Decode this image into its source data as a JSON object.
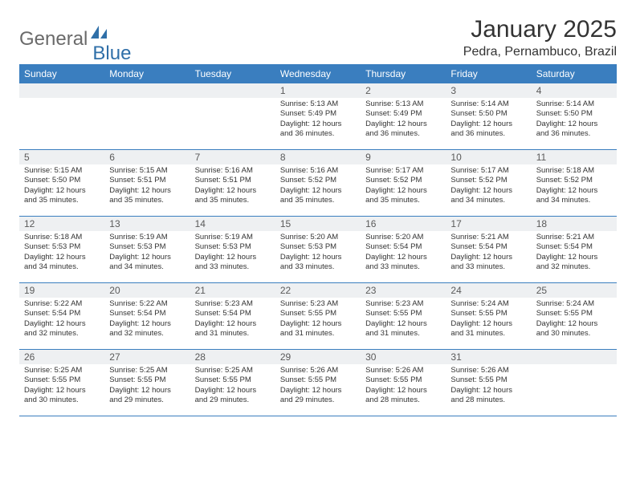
{
  "logo": {
    "part1": "General",
    "part2": "Blue"
  },
  "title": "January 2025",
  "location": "Pedra, Pernambuco, Brazil",
  "header_bg": "#3a7ebf",
  "columns": [
    "Sunday",
    "Monday",
    "Tuesday",
    "Wednesday",
    "Thursday",
    "Friday",
    "Saturday"
  ],
  "weeks": [
    [
      {
        "n": "",
        "lines": []
      },
      {
        "n": "",
        "lines": []
      },
      {
        "n": "",
        "lines": []
      },
      {
        "n": "1",
        "lines": [
          "Sunrise: 5:13 AM",
          "Sunset: 5:49 PM",
          "Daylight: 12 hours",
          "and 36 minutes."
        ]
      },
      {
        "n": "2",
        "lines": [
          "Sunrise: 5:13 AM",
          "Sunset: 5:49 PM",
          "Daylight: 12 hours",
          "and 36 minutes."
        ]
      },
      {
        "n": "3",
        "lines": [
          "Sunrise: 5:14 AM",
          "Sunset: 5:50 PM",
          "Daylight: 12 hours",
          "and 36 minutes."
        ]
      },
      {
        "n": "4",
        "lines": [
          "Sunrise: 5:14 AM",
          "Sunset: 5:50 PM",
          "Daylight: 12 hours",
          "and 36 minutes."
        ]
      }
    ],
    [
      {
        "n": "5",
        "lines": [
          "Sunrise: 5:15 AM",
          "Sunset: 5:50 PM",
          "Daylight: 12 hours",
          "and 35 minutes."
        ]
      },
      {
        "n": "6",
        "lines": [
          "Sunrise: 5:15 AM",
          "Sunset: 5:51 PM",
          "Daylight: 12 hours",
          "and 35 minutes."
        ]
      },
      {
        "n": "7",
        "lines": [
          "Sunrise: 5:16 AM",
          "Sunset: 5:51 PM",
          "Daylight: 12 hours",
          "and 35 minutes."
        ]
      },
      {
        "n": "8",
        "lines": [
          "Sunrise: 5:16 AM",
          "Sunset: 5:52 PM",
          "Daylight: 12 hours",
          "and 35 minutes."
        ]
      },
      {
        "n": "9",
        "lines": [
          "Sunrise: 5:17 AM",
          "Sunset: 5:52 PM",
          "Daylight: 12 hours",
          "and 35 minutes."
        ]
      },
      {
        "n": "10",
        "lines": [
          "Sunrise: 5:17 AM",
          "Sunset: 5:52 PM",
          "Daylight: 12 hours",
          "and 34 minutes."
        ]
      },
      {
        "n": "11",
        "lines": [
          "Sunrise: 5:18 AM",
          "Sunset: 5:52 PM",
          "Daylight: 12 hours",
          "and 34 minutes."
        ]
      }
    ],
    [
      {
        "n": "12",
        "lines": [
          "Sunrise: 5:18 AM",
          "Sunset: 5:53 PM",
          "Daylight: 12 hours",
          "and 34 minutes."
        ]
      },
      {
        "n": "13",
        "lines": [
          "Sunrise: 5:19 AM",
          "Sunset: 5:53 PM",
          "Daylight: 12 hours",
          "and 34 minutes."
        ]
      },
      {
        "n": "14",
        "lines": [
          "Sunrise: 5:19 AM",
          "Sunset: 5:53 PM",
          "Daylight: 12 hours",
          "and 33 minutes."
        ]
      },
      {
        "n": "15",
        "lines": [
          "Sunrise: 5:20 AM",
          "Sunset: 5:53 PM",
          "Daylight: 12 hours",
          "and 33 minutes."
        ]
      },
      {
        "n": "16",
        "lines": [
          "Sunrise: 5:20 AM",
          "Sunset: 5:54 PM",
          "Daylight: 12 hours",
          "and 33 minutes."
        ]
      },
      {
        "n": "17",
        "lines": [
          "Sunrise: 5:21 AM",
          "Sunset: 5:54 PM",
          "Daylight: 12 hours",
          "and 33 minutes."
        ]
      },
      {
        "n": "18",
        "lines": [
          "Sunrise: 5:21 AM",
          "Sunset: 5:54 PM",
          "Daylight: 12 hours",
          "and 32 minutes."
        ]
      }
    ],
    [
      {
        "n": "19",
        "lines": [
          "Sunrise: 5:22 AM",
          "Sunset: 5:54 PM",
          "Daylight: 12 hours",
          "and 32 minutes."
        ]
      },
      {
        "n": "20",
        "lines": [
          "Sunrise: 5:22 AM",
          "Sunset: 5:54 PM",
          "Daylight: 12 hours",
          "and 32 minutes."
        ]
      },
      {
        "n": "21",
        "lines": [
          "Sunrise: 5:23 AM",
          "Sunset: 5:54 PM",
          "Daylight: 12 hours",
          "and 31 minutes."
        ]
      },
      {
        "n": "22",
        "lines": [
          "Sunrise: 5:23 AM",
          "Sunset: 5:55 PM",
          "Daylight: 12 hours",
          "and 31 minutes."
        ]
      },
      {
        "n": "23",
        "lines": [
          "Sunrise: 5:23 AM",
          "Sunset: 5:55 PM",
          "Daylight: 12 hours",
          "and 31 minutes."
        ]
      },
      {
        "n": "24",
        "lines": [
          "Sunrise: 5:24 AM",
          "Sunset: 5:55 PM",
          "Daylight: 12 hours",
          "and 31 minutes."
        ]
      },
      {
        "n": "25",
        "lines": [
          "Sunrise: 5:24 AM",
          "Sunset: 5:55 PM",
          "Daylight: 12 hours",
          "and 30 minutes."
        ]
      }
    ],
    [
      {
        "n": "26",
        "lines": [
          "Sunrise: 5:25 AM",
          "Sunset: 5:55 PM",
          "Daylight: 12 hours",
          "and 30 minutes."
        ]
      },
      {
        "n": "27",
        "lines": [
          "Sunrise: 5:25 AM",
          "Sunset: 5:55 PM",
          "Daylight: 12 hours",
          "and 29 minutes."
        ]
      },
      {
        "n": "28",
        "lines": [
          "Sunrise: 5:25 AM",
          "Sunset: 5:55 PM",
          "Daylight: 12 hours",
          "and 29 minutes."
        ]
      },
      {
        "n": "29",
        "lines": [
          "Sunrise: 5:26 AM",
          "Sunset: 5:55 PM",
          "Daylight: 12 hours",
          "and 29 minutes."
        ]
      },
      {
        "n": "30",
        "lines": [
          "Sunrise: 5:26 AM",
          "Sunset: 5:55 PM",
          "Daylight: 12 hours",
          "and 28 minutes."
        ]
      },
      {
        "n": "31",
        "lines": [
          "Sunrise: 5:26 AM",
          "Sunset: 5:55 PM",
          "Daylight: 12 hours",
          "and 28 minutes."
        ]
      },
      {
        "n": "",
        "lines": []
      }
    ]
  ]
}
